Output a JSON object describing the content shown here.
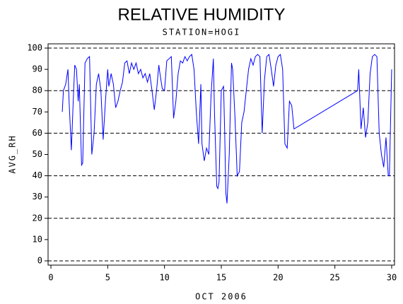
{
  "chart_data": {
    "type": "line",
    "title": "RELATIVE HUMIDITY",
    "subtitle": "STATION=HOGI",
    "ylabel": "AVG_RH",
    "xlabel": "OCT 2006",
    "color": "#0000ff",
    "x": [
      1.0,
      1.1,
      1.3,
      1.5,
      1.6,
      1.8,
      2.0,
      2.1,
      2.25,
      2.4,
      2.5,
      2.7,
      2.8,
      3.0,
      3.2,
      3.4,
      3.6,
      3.8,
      4.0,
      4.2,
      4.4,
      4.6,
      4.8,
      5.0,
      5.1,
      5.3,
      5.5,
      5.7,
      5.9,
      6.1,
      6.3,
      6.5,
      6.7,
      6.9,
      7.1,
      7.3,
      7.5,
      7.7,
      7.9,
      8.1,
      8.3,
      8.5,
      8.7,
      8.9,
      9.1,
      9.3,
      9.5,
      9.6,
      9.8,
      10.0,
      10.2,
      10.4,
      10.6,
      10.8,
      11.0,
      11.2,
      11.4,
      11.6,
      11.8,
      12.0,
      12.2,
      12.4,
      12.6,
      12.8,
      13.0,
      13.2,
      13.3,
      13.5,
      13.7,
      13.9,
      14.1,
      14.3,
      14.4,
      14.6,
      14.7,
      14.8,
      15.0,
      15.2,
      15.3,
      15.4,
      15.5,
      15.7,
      15.9,
      16.0,
      16.2,
      16.4,
      16.6,
      16.8,
      17.0,
      17.2,
      17.4,
      17.6,
      17.8,
      18.0,
      18.2,
      18.4,
      18.6,
      18.8,
      19.0,
      19.2,
      19.4,
      19.6,
      19.8,
      20.0,
      20.2,
      20.4,
      20.6,
      20.8,
      21.0,
      21.2,
      21.4,
      27.0,
      27.1,
      27.3,
      27.5,
      27.7,
      27.9,
      28.1,
      28.3,
      28.5,
      28.7,
      28.9,
      29.1,
      29.3,
      29.5,
      29.7,
      29.8,
      30.0
    ],
    "values": [
      70,
      80,
      83,
      90,
      75,
      52,
      80,
      92,
      90,
      75,
      83,
      45,
      46,
      93,
      95,
      96,
      50,
      60,
      83,
      88,
      80,
      57,
      75,
      90,
      82,
      88,
      83,
      72,
      75,
      80,
      84,
      93,
      94,
      88,
      93,
      90,
      93,
      88,
      90,
      86,
      88,
      84,
      88,
      80,
      71,
      80,
      92,
      88,
      81,
      80,
      94,
      95,
      96,
      67,
      75,
      88,
      94,
      93,
      96,
      94,
      96,
      97,
      90,
      70,
      55,
      83,
      55,
      47,
      53,
      50,
      78,
      95,
      70,
      35,
      34,
      37,
      80,
      82,
      60,
      32,
      27,
      50,
      93,
      90,
      68,
      40,
      42,
      65,
      70,
      80,
      90,
      95,
      92,
      96,
      97,
      96,
      60,
      85,
      96,
      97,
      90,
      82,
      92,
      96,
      97,
      90,
      55,
      53,
      75,
      73,
      62,
      80,
      90,
      62,
      72,
      58,
      65,
      88,
      96,
      97,
      96,
      60,
      50,
      44,
      58,
      40,
      40,
      90
    ],
    "xlim": [
      -0.25,
      30.25
    ],
    "xticks": [
      0,
      5,
      10,
      15,
      20,
      25,
      30
    ],
    "ylim": [
      -2,
      102
    ],
    "yticks": [
      0,
      10,
      20,
      30,
      40,
      50,
      60,
      70,
      80,
      90,
      100
    ],
    "ygrid": [
      0,
      20,
      40,
      60,
      80,
      100
    ]
  }
}
